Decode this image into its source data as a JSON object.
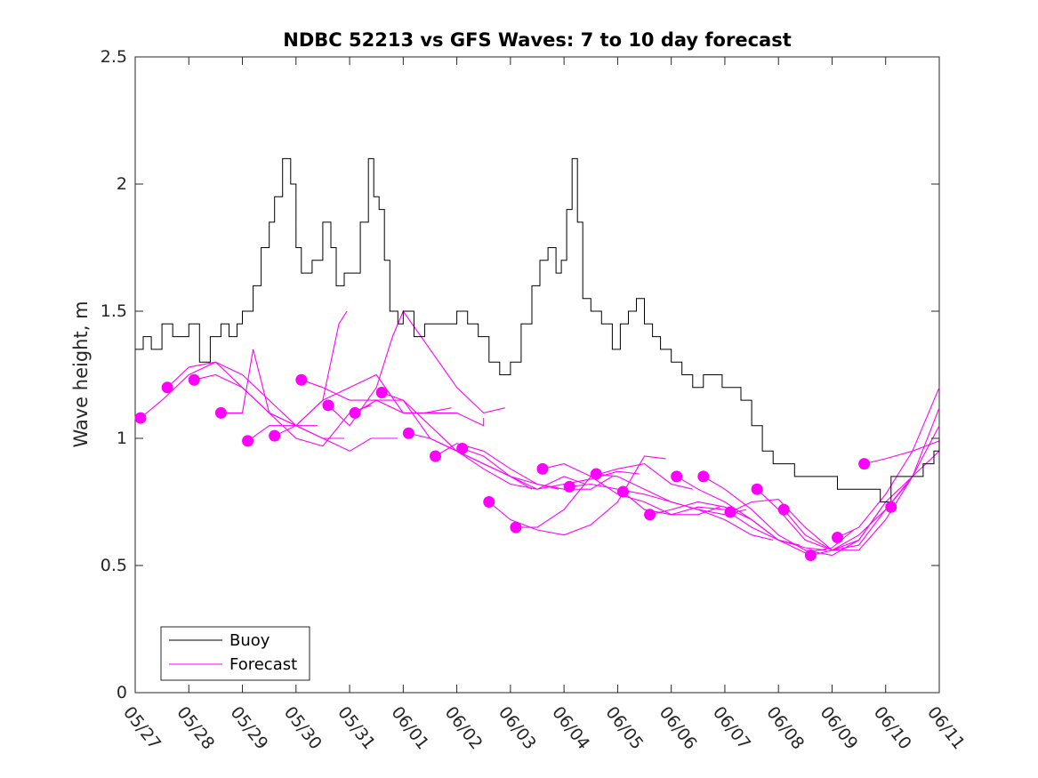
{
  "chart_data": {
    "type": "line",
    "title": "NDBC 52213 vs GFS Waves: 7 to 10 day forecast",
    "xlabel": "",
    "ylabel": "Wave height, m",
    "xlim": [
      "05/27",
      "06/11"
    ],
    "ylim": [
      0,
      2.5
    ],
    "yticks": [
      0,
      0.5,
      1,
      1.5,
      2,
      2.5
    ],
    "ytick_labels": [
      "0",
      "0.5",
      "1",
      "1.5",
      "2",
      "2.5"
    ],
    "xtick_labels": [
      "05/27",
      "05/28",
      "05/29",
      "05/30",
      "05/31",
      "06/01",
      "06/02",
      "06/03",
      "06/04",
      "06/05",
      "06/06",
      "06/07",
      "06/08",
      "06/09",
      "06/10",
      "06/11"
    ],
    "grid": false,
    "legend": {
      "placement": "bottom-left",
      "entries": [
        "Buoy",
        "Forecast"
      ]
    },
    "colors": {
      "buoy": "#000000",
      "forecast": "#ff00ff"
    },
    "series": [
      {
        "name": "Buoy",
        "x_days_after_05_27": [
          0,
          0.15,
          0.3,
          0.5,
          0.7,
          0.9,
          1.0,
          1.2,
          1.4,
          1.6,
          1.75,
          1.9,
          2.0,
          2.2,
          2.35,
          2.5,
          2.6,
          2.75,
          2.9,
          3.0,
          3.1,
          3.3,
          3.5,
          3.65,
          3.75,
          3.9,
          4.0,
          4.2,
          4.35,
          4.45,
          4.55,
          4.65,
          4.75,
          4.9,
          5.0,
          5.2,
          5.4,
          5.6,
          5.8,
          6.0,
          6.2,
          6.4,
          6.6,
          6.8,
          7.0,
          7.2,
          7.4,
          7.55,
          7.7,
          7.85,
          7.95,
          8.05,
          8.15,
          8.25,
          8.35,
          8.5,
          8.7,
          8.9,
          9.05,
          9.2,
          9.35,
          9.5,
          9.65,
          9.8,
          10.0,
          10.2,
          10.4,
          10.6,
          10.8,
          10.95,
          11.1,
          11.3,
          11.5,
          11.7,
          11.9,
          12.1,
          12.3,
          12.5,
          12.7,
          12.9,
          13.1,
          13.3,
          13.5,
          13.7,
          13.9,
          14.1,
          14.3,
          14.5,
          14.7,
          14.9,
          15.0
        ],
        "y": [
          1.35,
          1.4,
          1.35,
          1.45,
          1.4,
          1.4,
          1.45,
          1.3,
          1.4,
          1.45,
          1.4,
          1.45,
          1.5,
          1.6,
          1.75,
          1.85,
          1.95,
          2.1,
          2.0,
          1.75,
          1.65,
          1.7,
          1.85,
          1.75,
          1.6,
          1.65,
          1.65,
          1.85,
          2.1,
          1.95,
          1.9,
          1.7,
          1.5,
          1.45,
          1.5,
          1.4,
          1.45,
          1.45,
          1.45,
          1.5,
          1.45,
          1.4,
          1.3,
          1.25,
          1.3,
          1.45,
          1.6,
          1.7,
          1.75,
          1.65,
          1.7,
          1.9,
          2.1,
          1.85,
          1.55,
          1.5,
          1.45,
          1.35,
          1.45,
          1.5,
          1.55,
          1.45,
          1.4,
          1.35,
          1.3,
          1.25,
          1.2,
          1.25,
          1.25,
          1.2,
          1.2,
          1.15,
          1.05,
          0.95,
          0.9,
          0.9,
          0.85,
          0.85,
          0.85,
          0.85,
          0.8,
          0.8,
          0.8,
          0.8,
          0.75,
          0.85,
          0.85,
          0.85,
          0.9,
          0.95,
          1.0
        ]
      },
      {
        "name": "Forecast",
        "x_days_after_05_27": [
          0.1,
          0.6,
          1.1,
          1.6,
          2.1,
          2.6,
          3.1,
          3.6,
          4.1,
          4.6,
          5.1,
          5.6,
          6.1,
          6.6,
          7.1,
          7.6,
          8.1,
          8.6,
          9.1,
          9.6,
          10.1,
          10.6,
          11.1,
          11.6,
          12.1,
          12.6,
          13.1,
          13.6,
          14.1
        ],
        "y": [
          1.08,
          1.2,
          1.23,
          1.1,
          0.99,
          1.01,
          1.23,
          1.13,
          1.1,
          1.18,
          1.02,
          0.93,
          0.96,
          0.75,
          0.65,
          0.88,
          0.81,
          0.86,
          0.79,
          0.7,
          0.85,
          0.85,
          0.71,
          0.8,
          0.72,
          0.54,
          0.61,
          0.9,
          0.73
        ]
      }
    ],
    "forecast_runs": [
      {
        "x_days_after_05_27": [
          0.1,
          0.5,
          1.0,
          1.5,
          2.0,
          2.5,
          3.0,
          3.4
        ],
        "y": [
          1.08,
          1.15,
          1.25,
          1.3,
          1.2,
          1.1,
          1.05,
          1.05
        ]
      },
      {
        "x_days_after_05_27": [
          0.6,
          1.0,
          1.5,
          2.0,
          2.5,
          3.0,
          3.5,
          3.9
        ],
        "y": [
          1.2,
          1.28,
          1.3,
          1.25,
          1.15,
          1.05,
          1.0,
          1.0
        ]
      },
      {
        "x_days_after_05_27": [
          1.1,
          1.5,
          2.0,
          2.5,
          3.0,
          3.5,
          3.8,
          3.95
        ],
        "y": [
          1.23,
          1.25,
          1.2,
          1.1,
          1.05,
          1.15,
          1.45,
          1.5
        ]
      },
      {
        "x_days_after_05_27": [
          1.6,
          2.0,
          2.2,
          2.5,
          3.0,
          3.5,
          4.0,
          4.4
        ],
        "y": [
          1.1,
          1.1,
          1.35,
          1.1,
          1.0,
          0.97,
          1.1,
          1.13
        ]
      },
      {
        "x_days_after_05_27": [
          2.1,
          2.5,
          3.0,
          3.5,
          4.0,
          4.4,
          4.9
        ],
        "y": [
          0.99,
          1.05,
          1.05,
          1.0,
          0.95,
          1.0,
          1.0
        ]
      },
      {
        "x_days_after_05_27": [
          2.6,
          3.0,
          3.5,
          4.0,
          4.5,
          5.0,
          5.4,
          5.9
        ],
        "y": [
          1.01,
          1.05,
          1.15,
          1.2,
          1.25,
          1.1,
          1.1,
          1.12
        ]
      },
      {
        "x_days_after_05_27": [
          3.1,
          3.5,
          4.0,
          4.5,
          5.0,
          5.5,
          6.0,
          6.5,
          6.5
        ],
        "y": [
          1.23,
          1.2,
          1.15,
          1.15,
          1.1,
          1.1,
          1.1,
          1.05,
          1.08
        ]
      },
      {
        "x_days_after_05_27": [
          3.6,
          4.0,
          4.5,
          4.8,
          5.0,
          5.5,
          6.0,
          6.5,
          6.9
        ],
        "y": [
          1.13,
          1.05,
          1.2,
          1.4,
          1.5,
          1.35,
          1.2,
          1.1,
          1.12
        ]
      },
      {
        "x_days_after_05_27": [
          4.1,
          4.5,
          5.0,
          5.5,
          6.0,
          6.5,
          7.0,
          7.4
        ],
        "y": [
          1.1,
          1.15,
          1.15,
          1.0,
          0.95,
          0.9,
          0.85,
          0.8
        ]
      },
      {
        "x_days_after_05_27": [
          4.6,
          5.0,
          5.5,
          6.0,
          6.5,
          7.0,
          7.5,
          7.9
        ],
        "y": [
          1.18,
          1.15,
          1.05,
          0.95,
          0.9,
          0.85,
          0.82,
          0.8
        ]
      },
      {
        "x_days_after_05_27": [
          5.1,
          5.5,
          6.0,
          6.5,
          7.0,
          7.5,
          8.0,
          8.4
        ],
        "y": [
          1.02,
          1.0,
          0.95,
          0.88,
          0.82,
          0.8,
          0.85,
          0.82
        ]
      },
      {
        "x_days_after_05_27": [
          5.6,
          6.0,
          6.5,
          7.0,
          7.5,
          8.0,
          8.5,
          8.9
        ],
        "y": [
          0.93,
          0.98,
          0.95,
          0.88,
          0.82,
          0.8,
          0.8,
          0.85
        ]
      },
      {
        "x_days_after_05_27": [
          6.1,
          6.5,
          7.0,
          7.5,
          8.0,
          8.5,
          9.0,
          9.4
        ],
        "y": [
          0.96,
          0.93,
          0.85,
          0.8,
          0.82,
          0.84,
          0.87,
          0.86
        ]
      },
      {
        "x_days_after_05_27": [
          6.6,
          7.0,
          7.5,
          8.0,
          8.5,
          9.0,
          9.5,
          9.9
        ],
        "y": [
          0.75,
          0.68,
          0.64,
          0.62,
          0.66,
          0.75,
          0.93,
          0.92
        ]
      },
      {
        "x_days_after_05_27": [
          7.1,
          7.5,
          8.0,
          8.5,
          9.0,
          9.5,
          10.0,
          10.4
        ],
        "y": [
          0.65,
          0.65,
          0.72,
          0.85,
          0.88,
          0.9,
          0.82,
          0.8
        ]
      },
      {
        "x_days_after_05_27": [
          7.6,
          8.0,
          8.5,
          9.0,
          9.5,
          10.0,
          10.5,
          10.9
        ],
        "y": [
          0.88,
          0.9,
          0.85,
          0.78,
          0.75,
          0.7,
          0.7,
          0.73
        ]
      },
      {
        "x_days_after_05_27": [
          8.1,
          8.5,
          9.0,
          9.5,
          10.0,
          10.5,
          11.0,
          11.4
        ],
        "y": [
          0.81,
          0.82,
          0.8,
          0.78,
          0.75,
          0.72,
          0.7,
          0.72
        ]
      },
      {
        "x_days_after_05_27": [
          8.6,
          9.0,
          9.5,
          10.0,
          10.5,
          11.0,
          11.5,
          11.9
        ],
        "y": [
          0.86,
          0.85,
          0.8,
          0.75,
          0.72,
          0.68,
          0.62,
          0.6
        ]
      },
      {
        "x_days_after_05_27": [
          9.1,
          9.5,
          10.0,
          10.5,
          11.0,
          11.5,
          12.0,
          12.4
        ],
        "y": [
          0.79,
          0.72,
          0.7,
          0.73,
          0.72,
          0.65,
          0.6,
          0.58
        ]
      },
      {
        "x_days_after_05_27": [
          9.6,
          10.0,
          10.5,
          11.0,
          11.5,
          12.0,
          12.5,
          12.9
        ],
        "y": [
          0.7,
          0.72,
          0.75,
          0.73,
          0.68,
          0.6,
          0.57,
          0.56
        ]
      },
      {
        "x_days_after_05_27": [
          10.1,
          10.5,
          11.0,
          11.5,
          12.0,
          12.5,
          13.0,
          13.4
        ],
        "y": [
          0.85,
          0.8,
          0.75,
          0.68,
          0.6,
          0.55,
          0.57,
          0.64
        ]
      },
      {
        "x_days_after_05_27": [
          10.6,
          11.0,
          11.5,
          12.0,
          12.5,
          13.0,
          13.5,
          13.9
        ],
        "y": [
          0.85,
          0.8,
          0.72,
          0.62,
          0.56,
          0.54,
          0.6,
          0.72
        ]
      },
      {
        "x_days_after_05_27": [
          11.1,
          11.5,
          12.0,
          12.5,
          13.0,
          13.5,
          14.0,
          14.4
        ],
        "y": [
          0.71,
          0.75,
          0.76,
          0.65,
          0.56,
          0.58,
          0.72,
          0.82
        ]
      },
      {
        "x_days_after_05_27": [
          11.6,
          12.0,
          12.5,
          13.0,
          13.5,
          14.0,
          14.5,
          15.0
        ],
        "y": [
          0.8,
          0.72,
          0.6,
          0.56,
          0.6,
          0.75,
          0.85,
          0.95
        ]
      },
      {
        "x_days_after_05_27": [
          12.1,
          12.5,
          13.0,
          13.5,
          14.0,
          14.5,
          15.0
        ],
        "y": [
          0.72,
          0.62,
          0.56,
          0.56,
          0.68,
          0.85,
          1.05
        ]
      },
      {
        "x_days_after_05_27": [
          12.6,
          13.0,
          13.5,
          14.0,
          14.5,
          15.0
        ],
        "y": [
          0.54,
          0.56,
          0.62,
          0.72,
          0.85,
          1.12
        ]
      },
      {
        "x_days_after_05_27": [
          13.1,
          13.5,
          14.0,
          14.5,
          15.0
        ],
        "y": [
          0.61,
          0.65,
          0.78,
          0.95,
          1.2
        ]
      },
      {
        "x_days_after_05_27": [
          13.6,
          14.0,
          14.5,
          15.0
        ],
        "y": [
          0.9,
          0.92,
          0.95,
          0.99
        ]
      }
    ]
  }
}
